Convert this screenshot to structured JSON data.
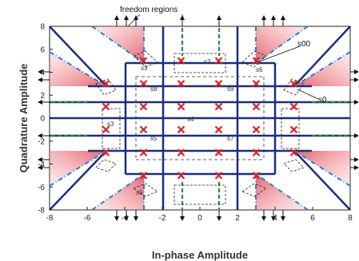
{
  "diagram": {
    "annotation_top": "freedom regions",
    "x_axis_label": "In-phase Amplitude",
    "y_axis_label": "Quadrature Amplitude",
    "x_ticks": [
      "-8",
      "-6",
      "-4",
      "-2",
      "0",
      "2",
      "4",
      "6",
      "8"
    ],
    "y_ticks": [
      "8",
      "6",
      "4",
      "2",
      "0",
      "-2",
      "-4",
      "-6",
      "-8"
    ],
    "labels": {
      "s0": "s0",
      "s00": "s00",
      "s2": "s2",
      "s3_top": "s3",
      "s3_left": "s3",
      "s4": "s4",
      "s5": "s5",
      "s6_top": "s6",
      "s6_bottom": "s6",
      "s7": "s7",
      "s8": "s8",
      "s9": "s9"
    },
    "colors": {
      "boundary": "#1b2f7a",
      "marker": "#e02020",
      "freedom_arrow": "#2a8a3a",
      "region_fill": "#e8606a",
      "dash_dot": "#2a7fd0"
    }
  },
  "chart_data": {
    "type": "scatter",
    "title": "",
    "xlabel": "In-phase Amplitude",
    "ylabel": "Quadrature Amplitude",
    "xlim": [
      -8,
      8
    ],
    "ylim": [
      -8,
      8
    ],
    "grid": false,
    "constellation_points": [
      {
        "x": -5,
        "y": 3
      },
      {
        "x": -3,
        "y": 5
      },
      {
        "x": -1,
        "y": 5
      },
      {
        "x": 1,
        "y": 5
      },
      {
        "x": 3,
        "y": 5
      },
      {
        "x": 5,
        "y": 3
      },
      {
        "x": -3,
        "y": 3
      },
      {
        "x": -1,
        "y": 3
      },
      {
        "x": 1,
        "y": 3
      },
      {
        "x": 3,
        "y": 3
      },
      {
        "x": -5,
        "y": 1
      },
      {
        "x": -3,
        "y": 1
      },
      {
        "x": -1,
        "y": 1
      },
      {
        "x": 1,
        "y": 1
      },
      {
        "x": 3,
        "y": 1
      },
      {
        "x": 5,
        "y": 1
      },
      {
        "x": -5,
        "y": -1
      },
      {
        "x": -3,
        "y": -1
      },
      {
        "x": -1,
        "y": -1
      },
      {
        "x": 1,
        "y": -1
      },
      {
        "x": 3,
        "y": -1
      },
      {
        "x": 5,
        "y": -1
      },
      {
        "x": -3,
        "y": -3
      },
      {
        "x": -1,
        "y": -3
      },
      {
        "x": 1,
        "y": -3
      },
      {
        "x": 3,
        "y": -3
      },
      {
        "x": -5,
        "y": -3
      },
      {
        "x": -3,
        "y": -5
      },
      {
        "x": -1,
        "y": -5
      },
      {
        "x": 1,
        "y": -5
      },
      {
        "x": 3,
        "y": -5
      },
      {
        "x": 5,
        "y": -3
      }
    ]
  }
}
